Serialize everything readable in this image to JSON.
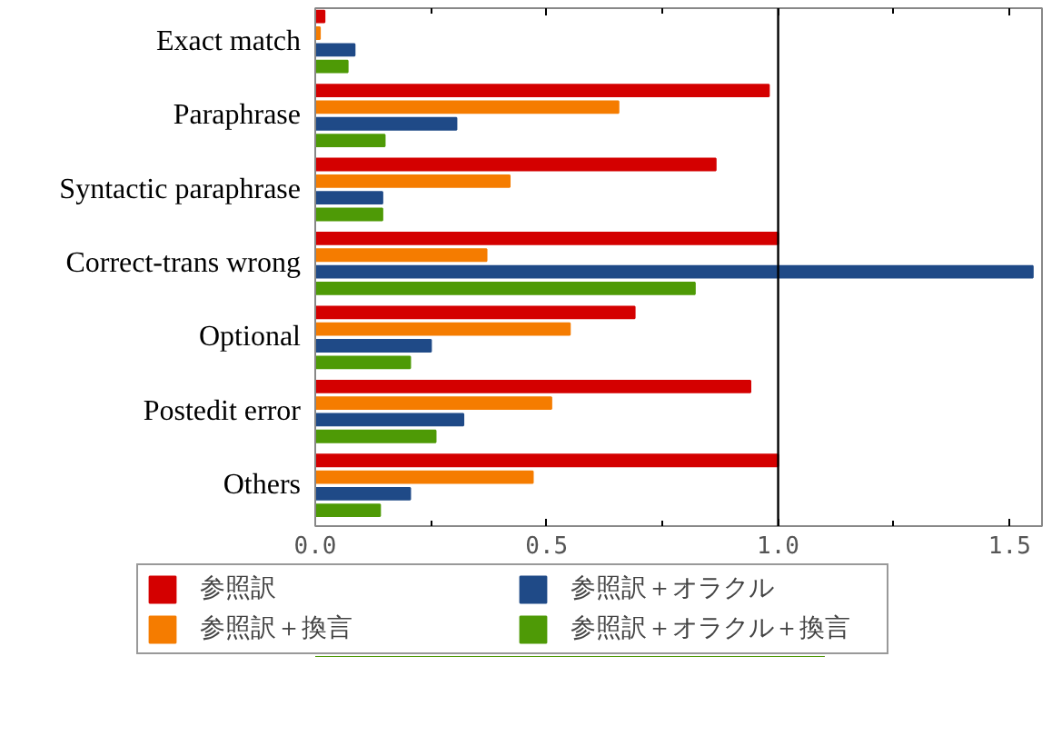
{
  "chart_data": {
    "type": "bar",
    "orientation": "horizontal",
    "categories": [
      "Exact match",
      "Paraphrase",
      "Syntactic paraphrase",
      "Correct-trans wrong",
      "Optional",
      "Postedit error",
      "Others"
    ],
    "series": [
      {
        "name": "参照訳",
        "color": "#d40000",
        "values": [
          0.02,
          0.98,
          0.865,
          1.0,
          0.69,
          0.94,
          1.0
        ]
      },
      {
        "name": "参照訳＋換言",
        "color": "#f57c00",
        "values": [
          0.01,
          0.655,
          0.42,
          0.37,
          0.55,
          0.51,
          0.47
        ]
      },
      {
        "name": "参照訳＋オラクル",
        "color": "#1f4a87",
        "values": [
          0.085,
          0.305,
          0.145,
          1.55,
          0.25,
          0.32,
          0.205
        ]
      },
      {
        "name": "参照訳＋オラクル＋換言",
        "color": "#4e9a06",
        "values": [
          0.07,
          0.15,
          0.145,
          0.82,
          0.205,
          0.26,
          0.14
        ]
      }
    ],
    "xlim": [
      0,
      1.57
    ],
    "xticks": [
      {
        "value": 0,
        "label": "0.0"
      },
      {
        "value": 0.25,
        "label": null
      },
      {
        "value": 0.5,
        "label": "0.5"
      },
      {
        "value": 0.75,
        "label": null
      },
      {
        "value": 1.0,
        "label": "1.0"
      },
      {
        "value": 1.25,
        "label": null
      },
      {
        "value": 1.5,
        "label": "1.5"
      }
    ],
    "ref_lines": [
      {
        "axis": "x",
        "value": 1.0,
        "color": "#000000"
      }
    ],
    "grid": false,
    "legend": "bottom"
  }
}
